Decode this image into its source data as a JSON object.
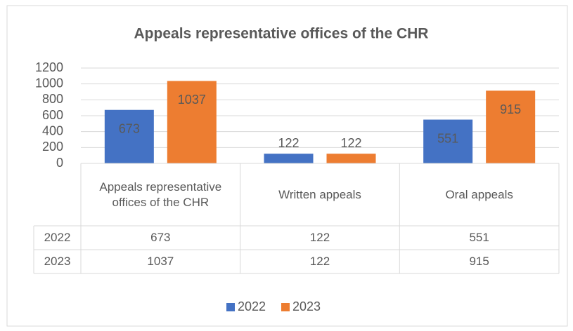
{
  "chart_data": {
    "type": "bar",
    "title": "Appeals representative offices of the CHR",
    "categories": [
      "Appeals representative offices of the CHR",
      "Written appeals",
      "Oral appeals"
    ],
    "series": [
      {
        "name": "2022",
        "color": "#4472c4",
        "values": [
          673,
          122,
          551
        ]
      },
      {
        "name": "2023",
        "color": "#ed7d31",
        "values": [
          1037,
          122,
          915
        ]
      }
    ],
    "ylim": [
      0,
      1200
    ],
    "yticks": [
      0,
      200,
      400,
      600,
      800,
      1000,
      1200
    ],
    "grid": true,
    "legend": "bottom",
    "data_table": true
  }
}
